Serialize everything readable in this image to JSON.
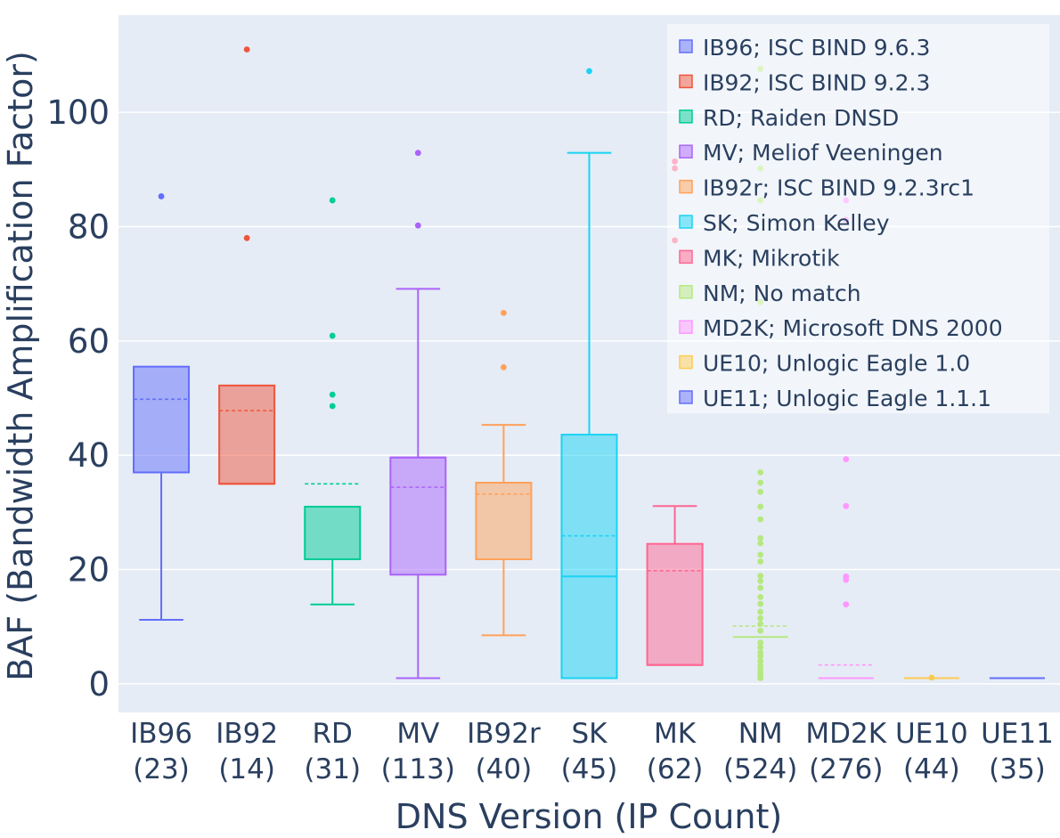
{
  "chart_data": {
    "type": "box",
    "xlabel": "DNS Version (IP Count)",
    "ylabel": "BAF (Bandwidth Amplification Factor)",
    "ylim": [
      -5,
      117
    ],
    "yticks": [
      0,
      20,
      40,
      60,
      80,
      100
    ],
    "grid": true,
    "legend_position": "top-right",
    "series": [
      {
        "name": "IB96; ISC BIND 9.6.3",
        "short": "IB96",
        "count": "(23)",
        "color": "#636efa",
        "lower_fence": 11.2,
        "q1": 37,
        "median": 37,
        "q3": 55.5,
        "upper_fence": 55.5,
        "mean": 49.8,
        "outliers": [
          85.3
        ]
      },
      {
        "name": "IB92; ISC BIND 9.2.3",
        "short": "IB92",
        "count": "(14)",
        "color": "#ef553b",
        "lower_fence": 35,
        "q1": 35,
        "median": 35,
        "q3": 52.2,
        "upper_fence": 52.2,
        "mean": 47.8,
        "outliers": [
          78,
          111
        ]
      },
      {
        "name": "RD; Raiden DNSD",
        "short": "RD",
        "count": "(31)",
        "color": "#00cc96",
        "lower_fence": 13.9,
        "q1": 21.8,
        "median": 31,
        "q3": 31,
        "upper_fence": 31,
        "mean": 35,
        "outliers": [
          48.6,
          50.6,
          60.9,
          84.6
        ]
      },
      {
        "name": "MV; Meliof Veeningen",
        "short": "MV",
        "count": "(113)",
        "color": "#ab63fa",
        "lower_fence": 1,
        "q1": 19.1,
        "median": 39.6,
        "q3": 39.6,
        "upper_fence": 69.1,
        "mean": 34.4,
        "outliers": [
          80.2,
          92.9
        ]
      },
      {
        "name": "IB92r; ISC BIND 9.2.3rc1",
        "short": "IB92r",
        "count": "(40)",
        "color": "#ffa15a",
        "lower_fence": 8.5,
        "q1": 21.8,
        "median": 35.2,
        "q3": 35.2,
        "upper_fence": 45.3,
        "mean": 33.2,
        "outliers": [
          55.4,
          64.9
        ]
      },
      {
        "name": "SK; Simon Kelley",
        "short": "SK",
        "count": "(45)",
        "color": "#19d3f3",
        "lower_fence": 1,
        "q1": 1,
        "median": 18.8,
        "q3": 43.6,
        "upper_fence": 92.9,
        "mean": 25.9,
        "outliers": [
          107.2
        ]
      },
      {
        "name": "MK; Mikrotik",
        "short": "MK",
        "count": "(62)",
        "color": "#ff6692",
        "lower_fence": 3.3,
        "q1": 3.3,
        "median": 3.3,
        "q3": 24.5,
        "upper_fence": 31.1,
        "mean": 19.8,
        "outliers": [
          77.6,
          90.2,
          91.4
        ]
      },
      {
        "name": "NM; No match",
        "short": "NM",
        "count": "(524)",
        "color": "#b6e880",
        "lower_fence": 8.2,
        "q1": 8.2,
        "median": 8.2,
        "q3": 8.2,
        "upper_fence": 8.2,
        "mean": 10.1,
        "outliers": [
          1,
          1.5,
          2,
          2.6,
          3.2,
          4,
          4.8,
          5.5,
          6.4,
          7.2,
          9.3,
          10.5,
          11.5,
          12.6,
          14,
          15.2,
          16.8,
          18,
          18.9,
          21.4,
          22.6,
          24.6,
          25.5,
          28.8,
          31,
          33.6,
          35.2,
          37,
          66.8,
          84.6,
          90.2,
          107.6
        ]
      },
      {
        "name": "MD2K; Microsoft DNS 2000",
        "short": "MD2K",
        "count": "(276)",
        "color": "#ff97ff",
        "lower_fence": 1,
        "q1": 1,
        "median": 1,
        "q3": 1,
        "upper_fence": 1,
        "mean": 3.3,
        "outliers": [
          13.9,
          18.2,
          18.8,
          31.1,
          39.3,
          81.2,
          84.6
        ]
      },
      {
        "name": "UE10; Unlogic Eagle 1.0",
        "short": "UE10",
        "count": "(44)",
        "color": "#fecb52",
        "lower_fence": 1,
        "q1": 1,
        "median": 1,
        "q3": 1,
        "upper_fence": 1,
        "mean": 1,
        "outliers": [
          1.1
        ]
      },
      {
        "name": "UE11; Unlogic Eagle 1.1.1",
        "short": "UE11",
        "count": "(35)",
        "color": "#636efa",
        "lower_fence": 1,
        "q1": 1,
        "median": 1,
        "q3": 1,
        "upper_fence": 1,
        "mean": 1,
        "outliers": []
      }
    ]
  },
  "colors": {
    "plot_background": "#e5ecf6",
    "grid": "#ffffff",
    "text": "#2a3f5f"
  }
}
